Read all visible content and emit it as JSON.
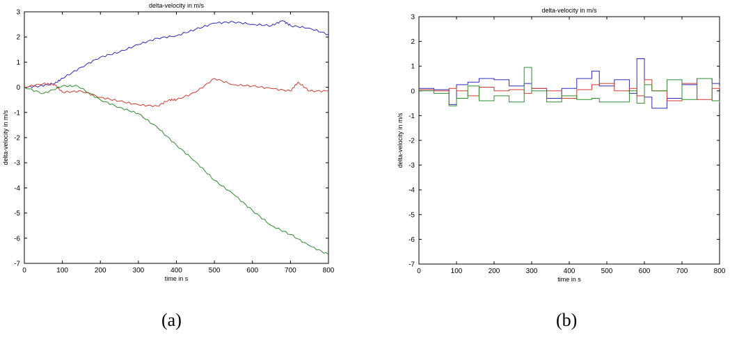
{
  "colors": {
    "blue": "#2b2bb8",
    "red": "#cc3a2e",
    "green": "#2e8a2e",
    "axis": "#000000"
  },
  "captions": [
    "(a)",
    "(b)"
  ],
  "chart_data": [
    {
      "type": "line",
      "title": "delta-velocity in m/s",
      "xlabel": "time in s",
      "ylabel": "delta-velocity in m/s",
      "xlim": [
        0,
        800
      ],
      "ylim": [
        -7,
        3
      ],
      "xticks": [
        0,
        100,
        200,
        300,
        400,
        500,
        600,
        700,
        800
      ],
      "yticks": [
        -7,
        -6,
        -5,
        -4,
        -3,
        -2,
        -1,
        0,
        1,
        2,
        3
      ],
      "grid": false,
      "series": [
        {
          "color": "blue",
          "x": [
            0,
            40,
            80,
            100,
            150,
            200,
            250,
            300,
            350,
            400,
            450,
            500,
            550,
            600,
            650,
            680,
            700,
            750,
            800
          ],
          "y": [
            0,
            0.05,
            0.15,
            0.35,
            0.8,
            1.2,
            1.4,
            1.7,
            1.95,
            2.05,
            2.3,
            2.55,
            2.6,
            2.5,
            2.45,
            2.65,
            2.45,
            2.35,
            2.1
          ]
        },
        {
          "color": "red",
          "x": [
            0,
            50,
            80,
            100,
            150,
            200,
            250,
            300,
            350,
            380,
            400,
            450,
            500,
            550,
            600,
            650,
            700,
            720,
            750,
            800
          ],
          "y": [
            0,
            0.15,
            0.1,
            -0.2,
            -0.15,
            -0.4,
            -0.55,
            -0.7,
            -0.75,
            -0.5,
            -0.5,
            -0.2,
            0.35,
            0.1,
            0.05,
            -0.05,
            -0.15,
            0.2,
            -0.15,
            -0.15
          ]
        },
        {
          "color": "green",
          "x": [
            0,
            50,
            100,
            140,
            200,
            250,
            300,
            350,
            400,
            450,
            500,
            550,
            600,
            650,
            700,
            750,
            800
          ],
          "y": [
            0,
            -0.25,
            0.05,
            0.05,
            -0.5,
            -0.8,
            -1.05,
            -1.6,
            -2.3,
            -2.95,
            -3.7,
            -4.25,
            -4.9,
            -5.5,
            -5.85,
            -6.3,
            -6.65
          ]
        }
      ]
    },
    {
      "type": "line",
      "title": "delta-velocity in m/s",
      "xlabel": "time in s",
      "ylabel": "delta-velocity in m/s",
      "xlim": [
        0,
        800
      ],
      "ylim": [
        -7,
        3
      ],
      "xticks": [
        0,
        100,
        200,
        300,
        400,
        500,
        600,
        700,
        800
      ],
      "yticks": [
        -7,
        -6,
        -5,
        -4,
        -3,
        -2,
        -1,
        0,
        1,
        2,
        3
      ],
      "grid": false,
      "series": [
        {
          "color": "blue",
          "x": [
            0,
            40,
            80,
            100,
            130,
            160,
            200,
            240,
            280,
            300,
            340,
            380,
            420,
            460,
            480,
            520,
            560,
            580,
            600,
            620,
            660,
            700,
            740,
            780,
            800
          ],
          "y": [
            0.1,
            0.05,
            -0.55,
            0.25,
            0.35,
            0.5,
            0.45,
            0.2,
            0.3,
            0.1,
            -0.3,
            0.1,
            0.5,
            0.8,
            0.2,
            0.45,
            -0.1,
            1.3,
            -0.25,
            -0.7,
            -0.3,
            0.25,
            0.5,
            0.3,
            0.5
          ]
        },
        {
          "color": "red",
          "x": [
            0,
            40,
            80,
            100,
            130,
            160,
            200,
            240,
            280,
            300,
            340,
            380,
            420,
            460,
            480,
            520,
            560,
            580,
            600,
            620,
            660,
            700,
            740,
            780,
            800
          ],
          "y": [
            0.05,
            0.0,
            0.1,
            0.0,
            -0.2,
            0.15,
            0.0,
            0.05,
            -0.1,
            0.1,
            0.0,
            -0.3,
            0.05,
            0.25,
            0.3,
            0.0,
            0.1,
            -0.2,
            0.45,
            0.0,
            -0.4,
            0.3,
            -0.35,
            0.1,
            0.2
          ]
        },
        {
          "color": "green",
          "x": [
            0,
            40,
            80,
            100,
            130,
            160,
            200,
            240,
            280,
            300,
            340,
            380,
            420,
            460,
            480,
            520,
            560,
            580,
            600,
            620,
            660,
            700,
            740,
            780,
            800
          ],
          "y": [
            0.0,
            -0.1,
            -0.6,
            -0.3,
            0.2,
            -0.4,
            -0.2,
            -0.45,
            0.95,
            0.0,
            -0.45,
            -0.2,
            -0.35,
            -0.3,
            -0.45,
            -0.45,
            0.0,
            -0.5,
            0.25,
            0.0,
            0.45,
            -0.35,
            0.5,
            -0.4,
            -0.45
          ]
        }
      ]
    }
  ]
}
